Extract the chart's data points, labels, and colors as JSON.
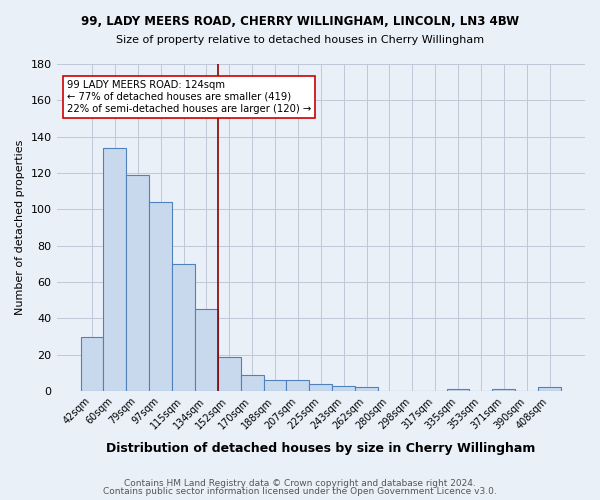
{
  "title1": "99, LADY MEERS ROAD, CHERRY WILLINGHAM, LINCOLN, LN3 4BW",
  "title2": "Size of property relative to detached houses in Cherry Willingham",
  "xlabel": "Distribution of detached houses by size in Cherry Willingham",
  "ylabel": "Number of detached properties",
  "footer1": "Contains HM Land Registry data © Crown copyright and database right 2024.",
  "footer2": "Contains public sector information licensed under the Open Government Licence v3.0.",
  "bin_labels": [
    "42sqm",
    "60sqm",
    "79sqm",
    "97sqm",
    "115sqm",
    "134sqm",
    "152sqm",
    "170sqm",
    "188sqm",
    "207sqm",
    "225sqm",
    "243sqm",
    "262sqm",
    "280sqm",
    "298sqm",
    "317sqm",
    "335sqm",
    "353sqm",
    "371sqm",
    "390sqm",
    "408sqm"
  ],
  "bar_heights": [
    30,
    134,
    119,
    104,
    70,
    45,
    19,
    9,
    6,
    6,
    4,
    3,
    2,
    0,
    0,
    0,
    1,
    0,
    1,
    0,
    2
  ],
  "bar_color": "#c9d9ed",
  "bar_edge_color": "#4f81bd",
  "background_color": "#eaf0f8",
  "vline_x": 5.5,
  "vline_color": "#8b0000",
  "annotation_text": "99 LADY MEERS ROAD: 124sqm\n← 77% of detached houses are smaller (419)\n22% of semi-detached houses are larger (120) →",
  "annotation_box_color": "#ffffff",
  "annotation_box_edge": "#cc0000",
  "ylim": [
    0,
    180
  ],
  "yticks": [
    0,
    20,
    40,
    60,
    80,
    100,
    120,
    140,
    160,
    180
  ]
}
